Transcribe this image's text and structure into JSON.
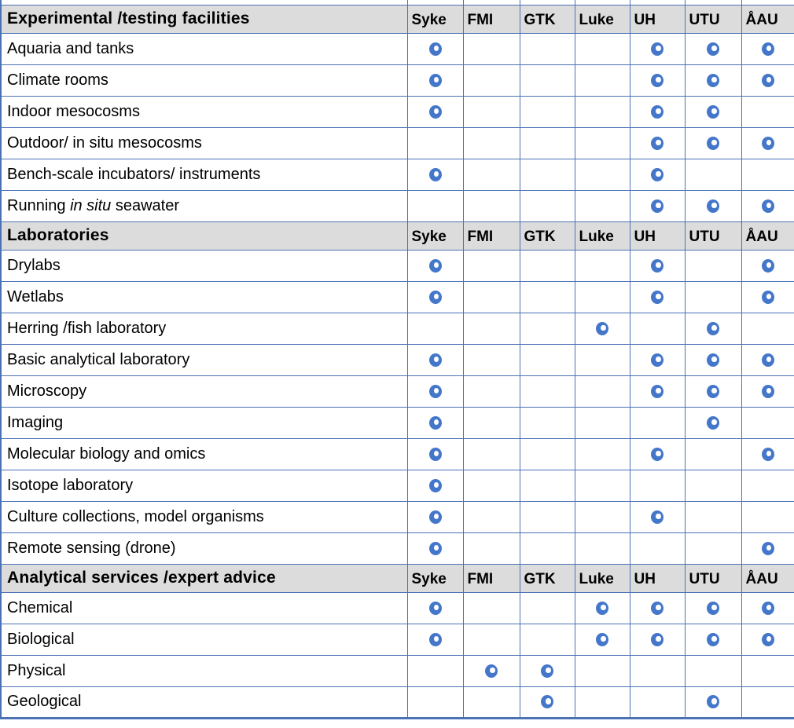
{
  "table": {
    "description": "Matrix of research facilities and services versus institutes; a dot marks availability at that institute",
    "columns": [
      "Syke",
      "FMI",
      "GTK",
      "Luke",
      "UH",
      "UTU",
      "ÅAU"
    ],
    "marker": {
      "icon": "availability-dot-icon",
      "meaning": "available at institute",
      "color": "#4477c9"
    },
    "colors": {
      "grid": "#4a72b4",
      "header_background": "#dcdcdc",
      "text": "#000000",
      "background": "#ffffff"
    },
    "sections": [
      {
        "title": "Experimental /testing facilities",
        "rows": [
          {
            "label_parts": [
              {
                "text": "Aquaria and tanks",
                "italic": false
              }
            ],
            "marks": [
              1,
              0,
              0,
              0,
              1,
              1,
              1
            ]
          },
          {
            "label_parts": [
              {
                "text": "Climate rooms",
                "italic": false
              }
            ],
            "marks": [
              1,
              0,
              0,
              0,
              1,
              1,
              1
            ]
          },
          {
            "label_parts": [
              {
                "text": "Indoor mesocosms",
                "italic": false
              }
            ],
            "marks": [
              1,
              0,
              0,
              0,
              1,
              1,
              0
            ]
          },
          {
            "label_parts": [
              {
                "text": "Outdoor/ in situ mesocosms",
                "italic": false
              }
            ],
            "marks": [
              0,
              0,
              0,
              0,
              1,
              1,
              1
            ]
          },
          {
            "label_parts": [
              {
                "text": "Bench-scale incubators/ instruments",
                "italic": false
              }
            ],
            "marks": [
              1,
              0,
              0,
              0,
              1,
              0,
              0
            ]
          },
          {
            "label_parts": [
              {
                "text": "Running ",
                "italic": false
              },
              {
                "text": "in situ",
                "italic": true
              },
              {
                "text": " seawater",
                "italic": false
              }
            ],
            "marks": [
              0,
              0,
              0,
              0,
              1,
              1,
              1
            ]
          }
        ]
      },
      {
        "title": "Laboratories",
        "rows": [
          {
            "label_parts": [
              {
                "text": "Drylabs",
                "italic": false
              }
            ],
            "marks": [
              1,
              0,
              0,
              0,
              1,
              0,
              1
            ]
          },
          {
            "label_parts": [
              {
                "text": "Wetlabs",
                "italic": false
              }
            ],
            "marks": [
              1,
              0,
              0,
              0,
              1,
              0,
              1
            ]
          },
          {
            "label_parts": [
              {
                "text": "Herring /fish laboratory",
                "italic": false
              }
            ],
            "marks": [
              0,
              0,
              0,
              1,
              0,
              1,
              0
            ]
          },
          {
            "label_parts": [
              {
                "text": "Basic analytical laboratory",
                "italic": false
              }
            ],
            "marks": [
              1,
              0,
              0,
              0,
              1,
              1,
              1
            ]
          },
          {
            "label_parts": [
              {
                "text": "Microscopy",
                "italic": false
              }
            ],
            "marks": [
              1,
              0,
              0,
              0,
              1,
              1,
              1
            ]
          },
          {
            "label_parts": [
              {
                "text": "Imaging",
                "italic": false
              }
            ],
            "marks": [
              1,
              0,
              0,
              0,
              0,
              1,
              0
            ]
          },
          {
            "label_parts": [
              {
                "text": "Molecular biology and omics",
                "italic": false
              }
            ],
            "marks": [
              1,
              0,
              0,
              0,
              1,
              0,
              1
            ]
          },
          {
            "label_parts": [
              {
                "text": "Isotope laboratory",
                "italic": false
              }
            ],
            "marks": [
              1,
              0,
              0,
              0,
              0,
              0,
              0
            ]
          },
          {
            "label_parts": [
              {
                "text": "Culture collections, model organisms",
                "italic": false
              }
            ],
            "marks": [
              1,
              0,
              0,
              0,
              1,
              0,
              0
            ]
          },
          {
            "label_parts": [
              {
                "text": "Remote sensing (drone)",
                "italic": false
              }
            ],
            "marks": [
              1,
              0,
              0,
              0,
              0,
              0,
              1
            ]
          }
        ]
      },
      {
        "title": "Analytical services /expert advice",
        "rows": [
          {
            "label_parts": [
              {
                "text": "Chemical",
                "italic": false
              }
            ],
            "marks": [
              1,
              0,
              0,
              1,
              1,
              1,
              1
            ]
          },
          {
            "label_parts": [
              {
                "text": "Biological",
                "italic": false
              }
            ],
            "marks": [
              1,
              0,
              0,
              1,
              1,
              1,
              1
            ]
          },
          {
            "label_parts": [
              {
                "text": "Physical",
                "italic": false
              }
            ],
            "marks": [
              0,
              1,
              1,
              0,
              0,
              0,
              0
            ]
          },
          {
            "label_parts": [
              {
                "text": "Geological",
                "italic": false
              }
            ],
            "marks": [
              0,
              0,
              1,
              0,
              0,
              1,
              0
            ]
          }
        ]
      }
    ]
  }
}
